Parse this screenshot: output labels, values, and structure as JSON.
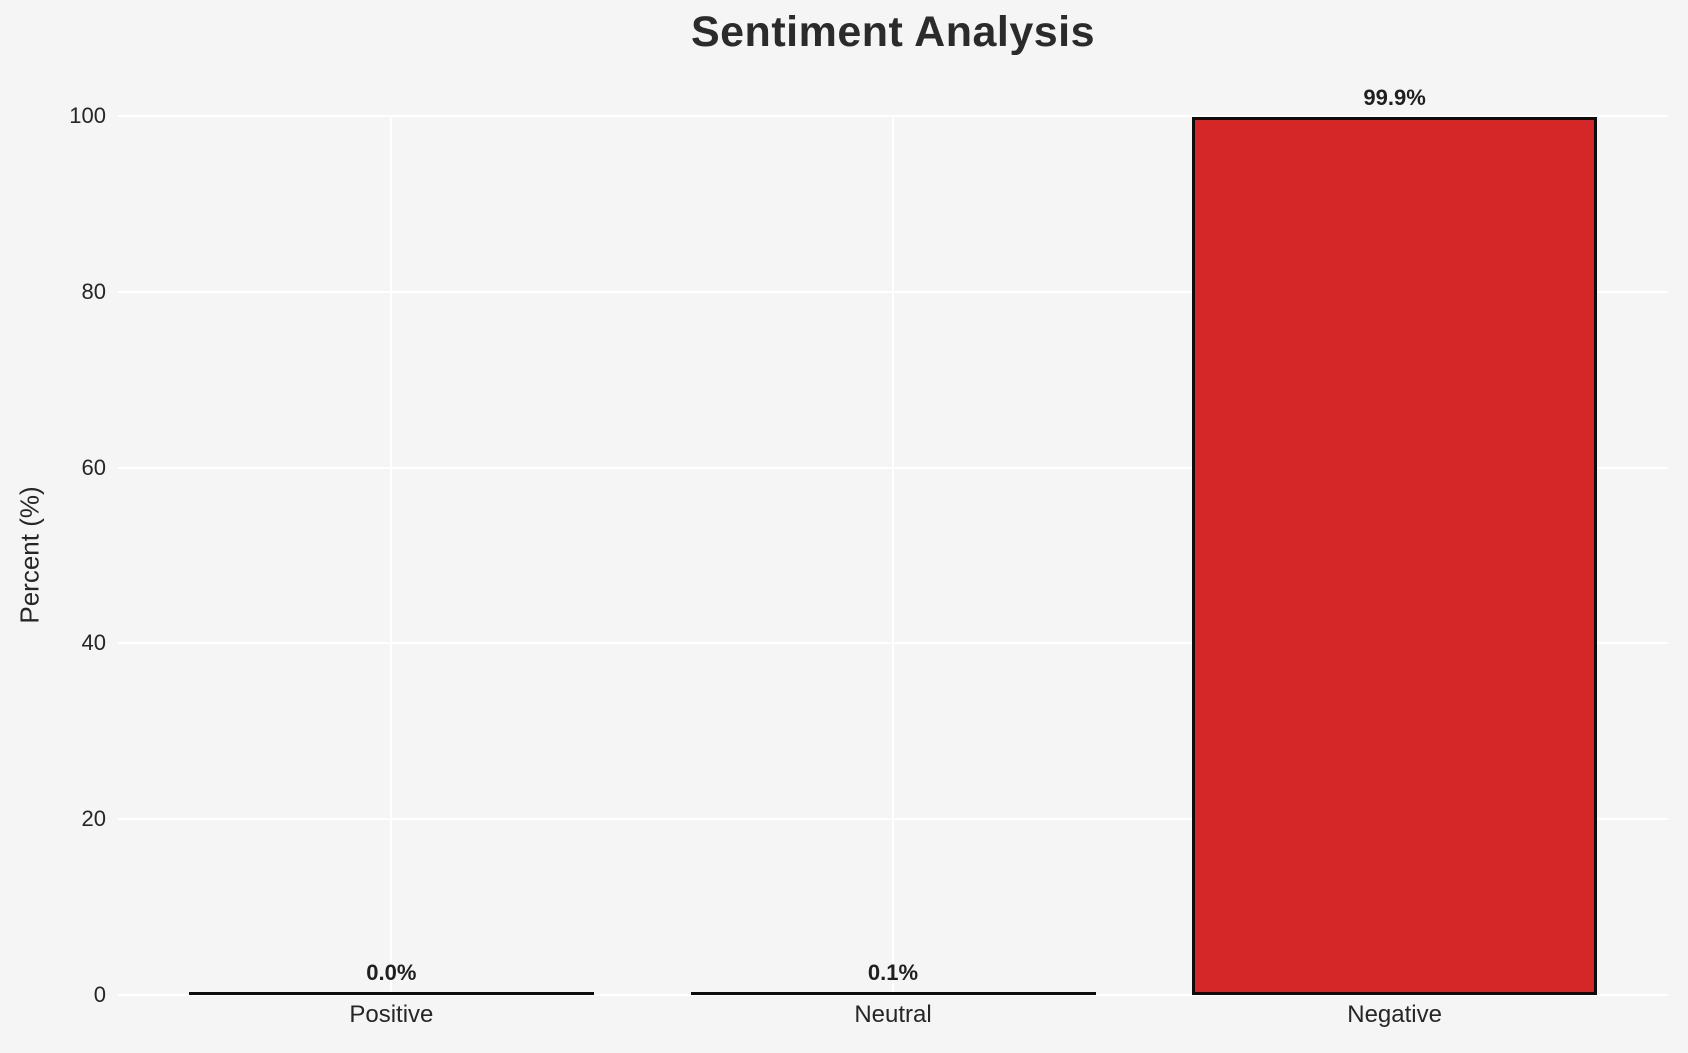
{
  "chart_data": {
    "type": "bar",
    "title": "Sentiment Analysis",
    "categories": [
      "Positive",
      "Neutral",
      "Negative"
    ],
    "values": [
      0.0,
      0.1,
      99.9
    ],
    "value_labels": [
      "0.0%",
      "0.1%",
      "99.9%"
    ],
    "xlabel": "",
    "ylabel": "Percent (%)",
    "ylim": [
      0,
      100
    ],
    "yticks": [
      0,
      20,
      40,
      60,
      80,
      100
    ],
    "grid": "on",
    "legend": "none",
    "colors": {
      "bar_fill": "#d62728",
      "bar_edge": "#0d0d0d",
      "background": "#f5f5f6",
      "gridline": "#ffffff",
      "text": "#262626",
      "title_text": "#2b2b2b"
    }
  }
}
